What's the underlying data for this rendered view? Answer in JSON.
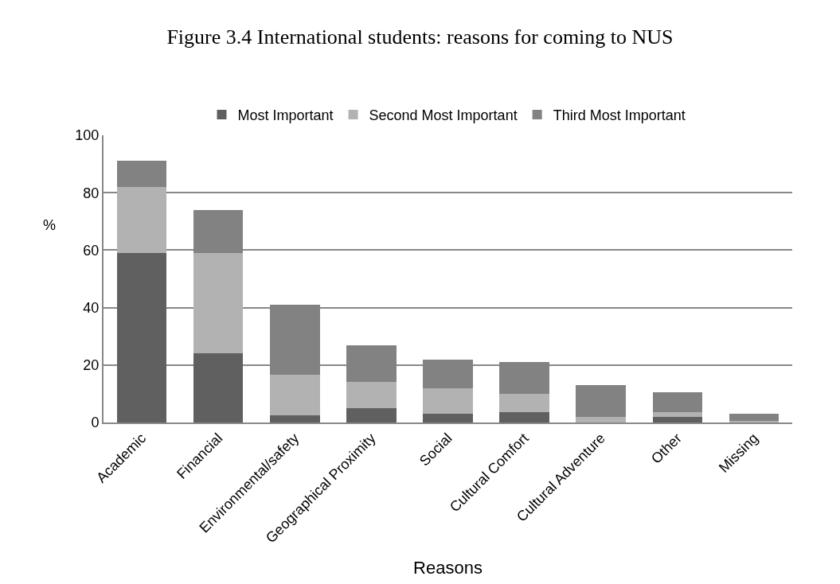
{
  "chart_data": {
    "type": "bar",
    "title": "Figure 3.4 International students: reasons for coming to NUS",
    "xlabel": "Reasons",
    "ylabel": "%",
    "categories": [
      "Academic",
      "Financial",
      "Environmental/safety",
      "Geographical Proximity",
      "Social",
      "Cultural Comfort",
      "Cultural Adventure",
      "Other",
      "Missing"
    ],
    "series": [
      {
        "name": "Most Important",
        "color": "#606060",
        "values": [
          59,
          24,
          2.5,
          5,
          3,
          3.5,
          0,
          2,
          0
        ]
      },
      {
        "name": "Second Most Important",
        "color": "#b2b2b2",
        "values": [
          23,
          35,
          14,
          9,
          9,
          6.5,
          2,
          1.5,
          0.5
        ]
      },
      {
        "name": "Third Most Important",
        "color": "#828282",
        "values": [
          9,
          15,
          24.5,
          13,
          10,
          11,
          11,
          7,
          2.5
        ]
      }
    ],
    "stacked": true,
    "ylim": [
      0,
      100
    ],
    "yticks": [
      0,
      20,
      40,
      60,
      80,
      100
    ],
    "grid": "y",
    "legend": "top"
  }
}
